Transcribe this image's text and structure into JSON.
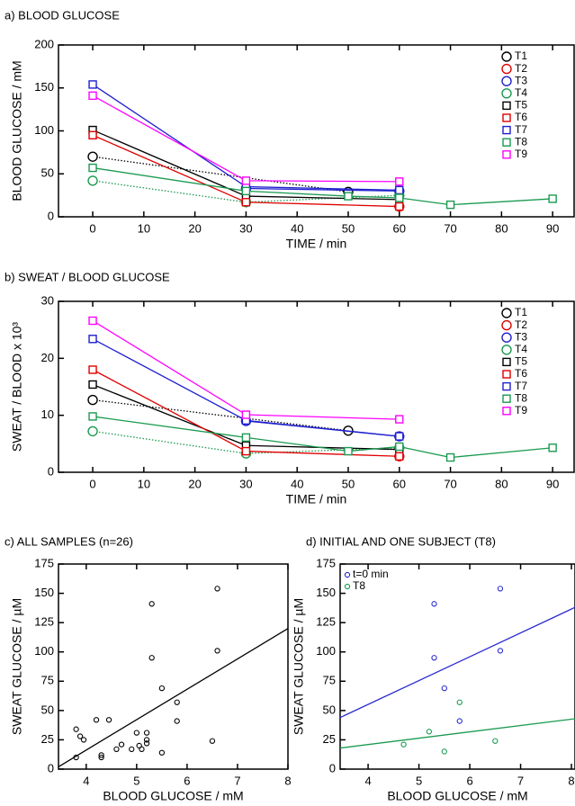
{
  "chart_data": [
    {
      "type": "line",
      "title": "a) BLOOD GLUCOSE",
      "xlabel": "TIME / min",
      "ylabel": "BLOOD GLUCOSE / mM",
      "xlim": [
        -6.7,
        94.2
      ],
      "xticks": [
        0,
        10,
        20,
        30,
        40,
        50,
        60,
        70,
        80,
        90
      ],
      "ylim": [
        0,
        200
      ],
      "yticks": [
        0,
        50,
        100,
        150,
        200
      ],
      "legend": "upper right",
      "series": [
        {
          "name": "T1",
          "color": "#000000",
          "marker": "circle",
          "linestyle": "dotted",
          "x": [
            0,
            50
          ],
          "values": [
            70,
            29
          ]
        },
        {
          "name": "T2",
          "color": "#e00000",
          "marker": "circle",
          "linestyle": "solid",
          "x": [
            60
          ],
          "values": [
            12
          ]
        },
        {
          "name": "T3",
          "color": "#1f1fd0",
          "marker": "circle",
          "linestyle": "solid",
          "x": [
            30,
            60
          ],
          "values": [
            33,
            30
          ]
        },
        {
          "name": "T4",
          "color": "#1a9a50",
          "marker": "circle",
          "linestyle": "dotted",
          "x": [
            0,
            30,
            60
          ],
          "values": [
            42,
            17,
            25
          ]
        },
        {
          "name": "T5",
          "color": "#000000",
          "marker": "square",
          "linestyle": "solid",
          "x": [
            0,
            30,
            60
          ],
          "values": [
            101,
            24,
            20
          ]
        },
        {
          "name": "T6",
          "color": "#e00000",
          "marker": "square",
          "linestyle": "solid",
          "x": [
            0,
            30,
            60
          ],
          "values": [
            95,
            17,
            12
          ]
        },
        {
          "name": "T7",
          "color": "#1f1fd0",
          "marker": "square",
          "linestyle": "solid",
          "x": [
            0,
            30,
            60
          ],
          "values": [
            154,
            35,
            31
          ]
        },
        {
          "name": "T8",
          "color": "#1a9a50",
          "marker": "square",
          "linestyle": "solid",
          "x": [
            0,
            30,
            50,
            60,
            70,
            90
          ],
          "values": [
            57,
            30,
            24,
            22,
            14,
            21
          ]
        },
        {
          "name": "T9",
          "color": "#ff00ff",
          "marker": "square",
          "linestyle": "solid",
          "x": [
            0,
            30,
            60
          ],
          "values": [
            141,
            42,
            41
          ]
        }
      ]
    },
    {
      "type": "line",
      "title": "b) SWEAT / BLOOD GLUCOSE",
      "xlabel": "TIME / min",
      "ylabel": "SWEAT / BLOOD x 10³",
      "xlim": [
        -6.7,
        94.2
      ],
      "xticks": [
        0,
        10,
        20,
        30,
        40,
        50,
        60,
        70,
        80,
        90
      ],
      "ylim": [
        0,
        30
      ],
      "yticks": [
        0,
        10,
        20,
        30
      ],
      "legend": "upper right",
      "series": [
        {
          "name": "T1",
          "color": "#000000",
          "marker": "circle",
          "linestyle": "dotted",
          "x": [
            0,
            50
          ],
          "values": [
            12.7,
            7.3
          ]
        },
        {
          "name": "T2",
          "color": "#e00000",
          "marker": "circle",
          "linestyle": "solid",
          "x": [
            60
          ],
          "values": [
            2.8
          ]
        },
        {
          "name": "T3",
          "color": "#1f1fd0",
          "marker": "circle",
          "linestyle": "solid",
          "x": [
            30,
            60
          ],
          "values": [
            9,
            6.3
          ]
        },
        {
          "name": "T4",
          "color": "#1a9a50",
          "marker": "circle",
          "linestyle": "dotted",
          "x": [
            0,
            30,
            60
          ],
          "values": [
            7.2,
            3.3,
            4.3
          ]
        },
        {
          "name": "T5",
          "color": "#000000",
          "marker": "square",
          "linestyle": "solid",
          "x": [
            0,
            30,
            60
          ],
          "values": [
            15.4,
            4.7,
            4
          ]
        },
        {
          "name": "T6",
          "color": "#e00000",
          "marker": "square",
          "linestyle": "solid",
          "x": [
            0,
            30,
            60
          ],
          "values": [
            18,
            3.7,
            2.8
          ]
        },
        {
          "name": "T7",
          "color": "#1f1fd0",
          "marker": "square",
          "linestyle": "solid",
          "x": [
            0,
            30,
            60
          ],
          "values": [
            23.4,
            9.1,
            6.3
          ]
        },
        {
          "name": "T8",
          "color": "#1a9a50",
          "marker": "square",
          "linestyle": "solid",
          "x": [
            0,
            30,
            50,
            60,
            70,
            90
          ],
          "values": [
            9.8,
            6.1,
            3.7,
            4.5,
            2.6,
            4.3
          ]
        },
        {
          "name": "T9",
          "color": "#ff00ff",
          "marker": "square",
          "linestyle": "solid",
          "x": [
            0,
            30,
            60
          ],
          "values": [
            26.6,
            10.1,
            9.3
          ]
        }
      ]
    },
    {
      "type": "scatter",
      "title": "c) ALL SAMPLES (n=26)",
      "xlabel": "BLOOD GLUCOSE / mM",
      "ylabel": "SWEAT GLUCOSE / µM",
      "xlim": [
        3.45,
        8
      ],
      "xticks": [
        4,
        5,
        6,
        7,
        8
      ],
      "ylim": [
        0,
        175
      ],
      "yticks": [
        0,
        25,
        50,
        75,
        100,
        125,
        150,
        175
      ],
      "color": "#000000",
      "x": [
        3.8,
        3.8,
        3.88,
        3.95,
        4.2,
        4.3,
        4.3,
        4.45,
        4.6,
        4.7,
        4.9,
        5.0,
        5.05,
        5.1,
        5.2,
        5.2,
        5.2,
        5.3,
        5.3,
        5.5,
        5.5,
        5.8,
        5.8,
        6.5,
        6.6,
        6.6
      ],
      "values": [
        10,
        34,
        28,
        25,
        42,
        12,
        10,
        42,
        17,
        21,
        17,
        31,
        20,
        17,
        31,
        25,
        22,
        141,
        95,
        69,
        14,
        57,
        41,
        24,
        154,
        101
      ],
      "trend": {
        "x": [
          3.45,
          8
        ],
        "values": [
          2,
          120
        ]
      }
    },
    {
      "type": "scatter",
      "title": "d) INITIAL AND ONE SUBJECT (T8)",
      "xlabel": "BLOOD GLUCOSE / mM",
      "ylabel": "SWEAT GLUCOSE / µM",
      "xlim": [
        3.45,
        8.07
      ],
      "xticks": [
        4,
        5,
        6,
        7,
        8
      ],
      "ylim": [
        0,
        175
      ],
      "yticks": [
        0,
        25,
        50,
        75,
        100,
        125,
        150,
        175
      ],
      "legend": "upper left",
      "series": [
        {
          "name": "t=0 min",
          "color": "#2a2ad0",
          "x": [
            5.3,
            5.3,
            5.5,
            5.8,
            6.6,
            6.6
          ],
          "values": [
            141,
            95,
            69,
            41,
            154,
            101
          ],
          "trend": {
            "x": [
              3.45,
              8.07
            ],
            "values": [
              44,
              138
            ]
          }
        },
        {
          "name": "T8",
          "color": "#1a9a50",
          "x": [
            4.7,
            5.2,
            5.5,
            5.8,
            6.5
          ],
          "values": [
            21,
            32,
            15,
            57,
            24
          ],
          "trend": {
            "x": [
              3.45,
              8.07
            ],
            "values": [
              18,
              43
            ]
          }
        }
      ]
    }
  ]
}
